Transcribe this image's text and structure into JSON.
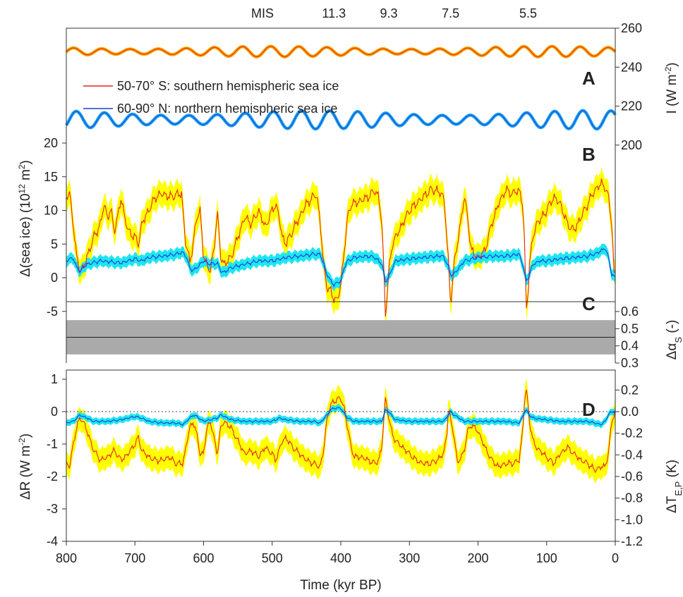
{
  "chart_data": [
    {
      "panel": "A",
      "type": "line",
      "ylabel": "I (W m-2)",
      "y_axis_side": "right",
      "yticks": [
        200,
        220,
        240,
        260
      ],
      "ylim": [
        192,
        260
      ],
      "xlim": [
        800,
        0
      ],
      "legend_placement": "upper-left",
      "series": [
        {
          "name": "50-70° S: southern hemispheric sea ice",
          "color": "#e8251e",
          "band_color": "#f5a300",
          "mean": 248,
          "amplitude": 2.0,
          "period_kyr": 41
        },
        {
          "name": "60-90° N: northern hemispheric sea ice",
          "color": "#1f3fd6",
          "band_color": "#1aa3f0",
          "mean": 213,
          "amplitude": 3.5,
          "period_kyr": 41
        }
      ]
    },
    {
      "panel": "B",
      "type": "area",
      "ylabel": "Δ(sea ice) (10^12 m^2)",
      "yticks": [
        -5,
        0,
        5,
        10,
        15,
        20
      ],
      "ylim": [
        -7,
        23
      ],
      "xlim": [
        800,
        0
      ],
      "series": [
        {
          "name": "50-70° S: southern hemispheric sea ice",
          "color": "#e8251e",
          "band_color": "#ffff00",
          "x": [
            800,
            795,
            790,
            785,
            780,
            775,
            770,
            760,
            750,
            745,
            740,
            735,
            730,
            725,
            720,
            715,
            710,
            705,
            700,
            695,
            690,
            680,
            670,
            660,
            650,
            640,
            632,
            626,
            620,
            615,
            610,
            605,
            600,
            595,
            590,
            585,
            580,
            575,
            570,
            560,
            550,
            540,
            530,
            520,
            510,
            500,
            495,
            490,
            485,
            480,
            470,
            460,
            450,
            440,
            435,
            430,
            425,
            420,
            415,
            410,
            405,
            400,
            395,
            390,
            385,
            380,
            370,
            360,
            350,
            345,
            340,
            338,
            335,
            332,
            330,
            325,
            320,
            310,
            300,
            290,
            280,
            270,
            260,
            250,
            248,
            245,
            243,
            240,
            235,
            230,
            220,
            215,
            210,
            200,
            190,
            180,
            170,
            160,
            150,
            140,
            135,
            132,
            130,
            127,
            125,
            120,
            115,
            110,
            100,
            90,
            80,
            70,
            60,
            50,
            40,
            30,
            20,
            15,
            10,
            5,
            2,
            0
          ],
          "y": [
            12,
            12.5,
            8,
            3,
            1,
            1.5,
            3,
            6,
            8,
            11,
            9,
            10,
            7,
            9,
            12,
            9,
            7,
            6.5,
            6,
            5,
            8,
            10,
            12,
            12.5,
            12,
            12.3,
            12.5,
            5,
            2.5,
            5,
            9,
            10,
            3,
            2,
            1,
            4,
            10,
            3,
            2,
            3,
            6,
            9,
            8,
            10,
            7.5,
            10,
            11,
            9,
            6,
            5,
            7,
            9,
            11,
            12,
            12.5,
            8,
            2,
            -1.5,
            -2,
            -3,
            -3.5,
            -1,
            4,
            9,
            11,
            11,
            11.5,
            12,
            13,
            12,
            8,
            3,
            -5.5,
            -2,
            1,
            5,
            6,
            8,
            10,
            11,
            12,
            13,
            13,
            12,
            10,
            5,
            2,
            -4,
            2,
            5,
            12,
            9,
            4,
            3,
            4,
            8,
            11,
            13,
            12.5,
            13,
            11,
            5,
            -5,
            -2,
            2,
            6,
            8,
            8.5,
            10,
            12,
            11,
            8,
            7,
            9,
            11,
            13,
            14,
            13.5,
            12,
            8,
            1,
            0
          ]
        },
        {
          "name": "60-90° N: northern hemispheric sea ice",
          "color": "#1f3fd6",
          "band_color": "#1ee6f0",
          "x": [
            800,
            790,
            785,
            780,
            770,
            750,
            720,
            700,
            690,
            680,
            660,
            640,
            630,
            625,
            620,
            615,
            610,
            600,
            590,
            580,
            575,
            570,
            560,
            540,
            520,
            500,
            480,
            460,
            440,
            430,
            425,
            420,
            415,
            410,
            405,
            400,
            395,
            390,
            380,
            360,
            350,
            340,
            335,
            330,
            325,
            320,
            300,
            280,
            260,
            250,
            245,
            240,
            235,
            220,
            200,
            180,
            160,
            140,
            135,
            132,
            130,
            125,
            120,
            110,
            100,
            80,
            60,
            40,
            30,
            20,
            15,
            10,
            5,
            0
          ],
          "y": [
            2.5,
            3,
            1.5,
            1,
            2,
            2.5,
            2.2,
            2.8,
            2.5,
            3,
            3.2,
            3.5,
            3.8,
            3,
            1.5,
            1,
            1.5,
            2.5,
            2,
            2.2,
            1,
            0.8,
            1.5,
            2,
            2.5,
            2.5,
            3,
            3.2,
            3.5,
            3.5,
            2,
            0.5,
            -0.5,
            -1,
            -0.8,
            -0.5,
            1.5,
            2.5,
            3,
            3.2,
            3,
            2,
            -0.5,
            0,
            1.5,
            2.5,
            2.8,
            3,
            3.2,
            3.2,
            2,
            0.5,
            0.5,
            2.5,
            3,
            3.2,
            3.2,
            3.5,
            2,
            0.5,
            -0.5,
            0.5,
            2,
            2.5,
            2.5,
            2.8,
            3,
            3.2,
            3.5,
            4,
            4.5,
            3,
            0.5,
            0
          ]
        }
      ]
    },
    {
      "panel": "C",
      "type": "line",
      "ylabel": "Δα_S (-)",
      "y_axis_side": "right",
      "yticks": [
        0.3,
        0.4,
        0.5,
        0.6
      ],
      "ylim": [
        0.3,
        0.6
      ],
      "xlim": [
        800,
        0
      ],
      "series": [
        {
          "name": "Δα_S",
          "color": "#222222",
          "band_color": "#aaaaaa",
          "value": 0.45,
          "band": [
            0.35,
            0.55
          ]
        }
      ]
    },
    {
      "panel": "D",
      "type": "area",
      "ylabel": "ΔR (W m^-2)",
      "y2label": "ΔT_E,P (K)",
      "yticks": [
        -4,
        -3,
        -2,
        -1,
        0,
        1
      ],
      "ylim": [
        -4,
        1
      ],
      "y2ticks": [
        -1.2,
        -1.0,
        -0.8,
        -0.6,
        -0.4,
        -0.2,
        0.0,
        0.2
      ],
      "y2lim": [
        -1.25,
        0.3
      ],
      "xticks": [
        800,
        700,
        600,
        500,
        400,
        300,
        200,
        100,
        0
      ],
      "xlim": [
        800,
        0
      ],
      "xlabel": "Time (kyr BP)",
      "reference_line": 0,
      "series": [
        {
          "name": "50-70° S: southern hemispheric sea ice",
          "color": "#e8251e",
          "band_color": "#ffff00",
          "x": [
            800,
            795,
            790,
            785,
            780,
            775,
            770,
            760,
            750,
            740,
            730,
            720,
            710,
            700,
            695,
            690,
            680,
            670,
            660,
            650,
            640,
            630,
            625,
            620,
            615,
            610,
            605,
            600,
            595,
            590,
            585,
            580,
            575,
            570,
            560,
            550,
            540,
            530,
            520,
            510,
            500,
            495,
            490,
            485,
            480,
            470,
            460,
            450,
            440,
            430,
            425,
            420,
            415,
            410,
            405,
            400,
            395,
            390,
            385,
            380,
            370,
            360,
            350,
            345,
            340,
            338,
            335,
            332,
            330,
            325,
            320,
            310,
            300,
            290,
            280,
            270,
            260,
            250,
            245,
            243,
            240,
            235,
            230,
            220,
            215,
            210,
            200,
            190,
            180,
            170,
            160,
            150,
            140,
            135,
            132,
            130,
            127,
            125,
            120,
            115,
            110,
            100,
            90,
            80,
            70,
            60,
            50,
            40,
            30,
            20,
            15,
            10,
            5,
            2,
            0
          ],
          "y": [
            -1.6,
            -1.7,
            -1,
            -0.5,
            -0.2,
            -0.3,
            -0.6,
            -1.2,
            -1.5,
            -1.4,
            -1.2,
            -1.5,
            -1.3,
            -1,
            -0.8,
            -1.2,
            -1.4,
            -1.5,
            -1.5,
            -1.4,
            -1.6,
            -1.6,
            -1,
            -0.5,
            -0.3,
            -0.7,
            -1.3,
            -1.3,
            -0.5,
            -0.3,
            -0.8,
            -1.3,
            -0.5,
            -0.3,
            -0.5,
            -0.9,
            -1.3,
            -1.2,
            -1.4,
            -1.1,
            -1.3,
            -1.5,
            -1.2,
            -0.9,
            -0.8,
            -1.1,
            -1.3,
            -1.5,
            -1.6,
            -1.7,
            -1.2,
            -0.2,
            0.2,
            0.3,
            0.4,
            0.4,
            0.1,
            -0.5,
            -1.1,
            -1.4,
            -1.4,
            -1.5,
            -1.6,
            -1.5,
            -1.1,
            -0.4,
            0.4,
            0.1,
            -0.2,
            -0.7,
            -0.9,
            -1.1,
            -1.3,
            -1.5,
            -1.6,
            -1.6,
            -1.5,
            -1.3,
            -0.6,
            0.2,
            -0.3,
            -0.7,
            -1.6,
            -1.2,
            -0.6,
            -0.4,
            -0.6,
            -1.1,
            -1.5,
            -1.7,
            -1.6,
            -1.6,
            -1.5,
            -0.6,
            0.4,
            0.7,
            0.2,
            -0.3,
            -0.9,
            -1.1,
            -1.2,
            -1.4,
            -1.6,
            -1.3,
            -1.1,
            -1.3,
            -1.5,
            -1.6,
            -1.8,
            -1.7,
            -1.7,
            -1.3,
            -0.3,
            -0.1,
            0
          ]
        },
        {
          "name": "60-90° N: northern hemispheric sea ice",
          "color": "#1f3fd6",
          "band_color": "#1ee6f0",
          "x": [
            800,
            790,
            780,
            770,
            760,
            740,
            720,
            700,
            690,
            680,
            660,
            640,
            630,
            620,
            615,
            610,
            600,
            590,
            580,
            575,
            570,
            560,
            540,
            520,
            500,
            490,
            480,
            460,
            440,
            430,
            420,
            415,
            410,
            405,
            400,
            395,
            390,
            380,
            360,
            340,
            335,
            330,
            325,
            320,
            300,
            280,
            260,
            250,
            245,
            240,
            235,
            220,
            200,
            180,
            160,
            140,
            135,
            132,
            130,
            125,
            120,
            100,
            80,
            60,
            40,
            30,
            20,
            15,
            10,
            5,
            0
          ],
          "y": [
            -0.35,
            -0.3,
            -0.1,
            -0.2,
            -0.3,
            -0.3,
            -0.25,
            -0.15,
            -0.2,
            -0.3,
            -0.35,
            -0.35,
            -0.4,
            -0.2,
            -0.1,
            -0.15,
            -0.3,
            -0.25,
            -0.2,
            -0.1,
            -0.15,
            -0.25,
            -0.3,
            -0.3,
            -0.3,
            -0.2,
            -0.25,
            -0.3,
            -0.3,
            -0.35,
            -0.1,
            0.05,
            0.1,
            0.12,
            0.1,
            -0.05,
            -0.2,
            -0.3,
            -0.3,
            -0.3,
            0.05,
            0,
            -0.15,
            -0.25,
            -0.3,
            -0.3,
            -0.3,
            -0.3,
            -0.15,
            0,
            -0.1,
            -0.3,
            -0.3,
            -0.3,
            -0.3,
            -0.35,
            -0.15,
            0,
            0.05,
            -0.1,
            -0.2,
            -0.25,
            -0.3,
            -0.3,
            -0.3,
            -0.35,
            -0.4,
            -0.3,
            -0.1,
            0,
            0
          ]
        }
      ]
    }
  ],
  "labels": {
    "mis_title": "MIS",
    "mis_stages": [
      {
        "label": "11.3",
        "kyr": 410
      },
      {
        "label": "9.3",
        "kyr": 330
      },
      {
        "label": "7.5",
        "kyr": 240
      },
      {
        "label": "5.5",
        "kyr": 127
      }
    ],
    "panel_A": "A",
    "panel_B": "B",
    "panel_C": "C",
    "panel_D": "D"
  },
  "colors": {
    "frame": "#333333",
    "zero_line": "#444444"
  }
}
